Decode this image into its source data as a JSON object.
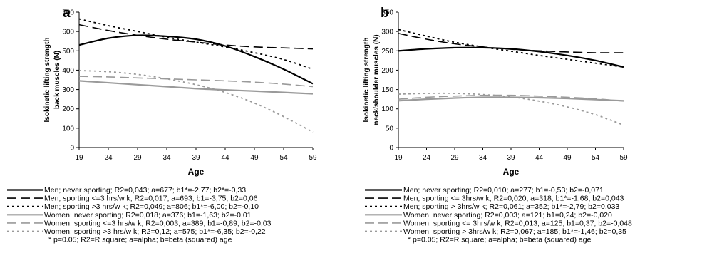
{
  "chart_data": [
    {
      "type": "line",
      "panel_label": "a",
      "ylabel_lines": [
        "Isokinetic lifting strength",
        "back muscles (N)"
      ],
      "xlabel": "Age",
      "xlim": [
        19,
        59
      ],
      "xticks": [
        19,
        24,
        29,
        34,
        39,
        44,
        49,
        54,
        59
      ],
      "ylim": [
        0,
        700
      ],
      "yticks": [
        0,
        100,
        200,
        300,
        400,
        500,
        600,
        700
      ],
      "series": [
        {
          "name": "Men; never sporting; R2=0,043; a=677; b1*=-2,77; b2*=-0,33",
          "color": "#000000",
          "style": "solid",
          "width": 2.2,
          "x": [
            19,
            24,
            29,
            34,
            39,
            44,
            49,
            54,
            59
          ],
          "y": [
            530,
            565,
            580,
            575,
            560,
            525,
            470,
            405,
            330
          ]
        },
        {
          "name": "Men; sporting <=3 hrs/w k; R2=0,017; a=693; b1=-3,75; b2=0,06",
          "color": "#000000",
          "style": "longdash",
          "width": 1.6,
          "x": [
            19,
            24,
            29,
            34,
            39,
            44,
            49,
            54,
            59
          ],
          "y": [
            635,
            605,
            580,
            560,
            545,
            530,
            520,
            515,
            510
          ]
        },
        {
          "name": "Men; sporting >3 hrs/w k; R2=0,049; a=806; b1*=-6,00; b2=-0,10",
          "color": "#000000",
          "style": "dot",
          "width": 1.8,
          "x": [
            19,
            24,
            29,
            34,
            39,
            44,
            49,
            54,
            59
          ],
          "y": [
            665,
            630,
            600,
            570,
            545,
            520,
            490,
            455,
            405
          ]
        },
        {
          "name": "Women; never sporting; R2=0,018; a=376; b1=-1,63; b2=-0,01",
          "color": "#9a9a9a",
          "style": "solid",
          "width": 2.2,
          "x": [
            19,
            24,
            29,
            34,
            39,
            44,
            49,
            54,
            59
          ],
          "y": [
            345,
            335,
            325,
            315,
            305,
            298,
            292,
            285,
            278
          ]
        },
        {
          "name": "Women; sporting <=3 hrs/w k; R2=0,003; a=389; b1=-0,89; b2=-0,03",
          "color": "#9a9a9a",
          "style": "longdash",
          "width": 1.6,
          "x": [
            19,
            24,
            29,
            34,
            39,
            44,
            49,
            54,
            59
          ],
          "y": [
            368,
            365,
            360,
            355,
            350,
            345,
            338,
            328,
            315
          ]
        },
        {
          "name": "Women; sporting >3 hrs/w k; R2=0,12; a=575; b1*=-6,35; b2=-0,22",
          "color": "#9a9a9a",
          "style": "dot",
          "width": 1.8,
          "x": [
            19,
            24,
            29,
            34,
            39,
            44,
            49,
            54,
            59
          ],
          "y": [
            398,
            392,
            378,
            355,
            325,
            285,
            230,
            160,
            80
          ]
        }
      ],
      "footnote": "* p=0.05; R2=R square; a=alpha; b=beta (squared) age"
    },
    {
      "type": "line",
      "panel_label": "b",
      "ylabel_lines": [
        "Isokinetic lifting strength",
        "neck/shoulder muscles (N)"
      ],
      "xlabel": "Age",
      "xlim": [
        19,
        59
      ],
      "xticks": [
        19,
        24,
        29,
        34,
        39,
        44,
        49,
        54,
        59
      ],
      "ylim": [
        0,
        350
      ],
      "yticks": [
        0,
        50,
        100,
        150,
        200,
        250,
        300,
        350
      ],
      "series": [
        {
          "name": "Men; never sporting; R2=0,010; a=277; b1=-0,53; b2=-0,071",
          "color": "#000000",
          "style": "solid",
          "width": 2.2,
          "x": [
            19,
            24,
            29,
            34,
            39,
            44,
            49,
            54,
            59
          ],
          "y": [
            250,
            255,
            258,
            258,
            255,
            248,
            238,
            225,
            208
          ]
        },
        {
          "name": "Men; sporting <= 3hrs/w k; R2=0,020; a=318; b1*=-1,68; b2=0,043",
          "color": "#000000",
          "style": "longdash",
          "width": 1.6,
          "x": [
            19,
            24,
            29,
            34,
            39,
            44,
            49,
            54,
            59
          ],
          "y": [
            295,
            280,
            268,
            260,
            254,
            250,
            247,
            245,
            245
          ]
        },
        {
          "name": "Men; sporting > 3hrs/w k; R2=0,061; a=352; b1*=-2,79; b2=0,033",
          "color": "#000000",
          "style": "dot",
          "width": 1.8,
          "x": [
            19,
            24,
            29,
            34,
            39,
            44,
            49,
            54,
            59
          ],
          "y": [
            305,
            288,
            272,
            260,
            249,
            238,
            228,
            218,
            208
          ]
        },
        {
          "name": "Women; never sporting; R2=0,003; a=121; b1=0,24; b2=-0,020",
          "color": "#9a9a9a",
          "style": "solid",
          "width": 2.2,
          "x": [
            19,
            24,
            29,
            34,
            39,
            44,
            49,
            54,
            59
          ],
          "y": [
            121,
            125,
            128,
            130,
            130,
            129,
            127,
            124,
            121
          ]
        },
        {
          "name": "Women; sporting <= 3hrs/w k; R2=0,013; a=125; b1=0,37; b2=-0,048",
          "color": "#9a9a9a",
          "style": "longdash",
          "width": 1.6,
          "x": [
            19,
            24,
            29,
            34,
            39,
            44,
            49,
            54,
            59
          ],
          "y": [
            125,
            130,
            133,
            135,
            135,
            133,
            130,
            126,
            120
          ]
        },
        {
          "name": "Women; sporting > 3hrs/w k; R2=0,067; a=185; b1*=-1,46; b2=0,35",
          "color": "#9a9a9a",
          "style": "dot",
          "width": 1.8,
          "x": [
            19,
            24,
            29,
            34,
            39,
            44,
            49,
            54,
            59
          ],
          "y": [
            138,
            140,
            140,
            137,
            131,
            120,
            105,
            85,
            58
          ]
        }
      ],
      "footnote": "* p=0.05; R2=R square; a=alpha; b=beta (squared) age"
    }
  ]
}
